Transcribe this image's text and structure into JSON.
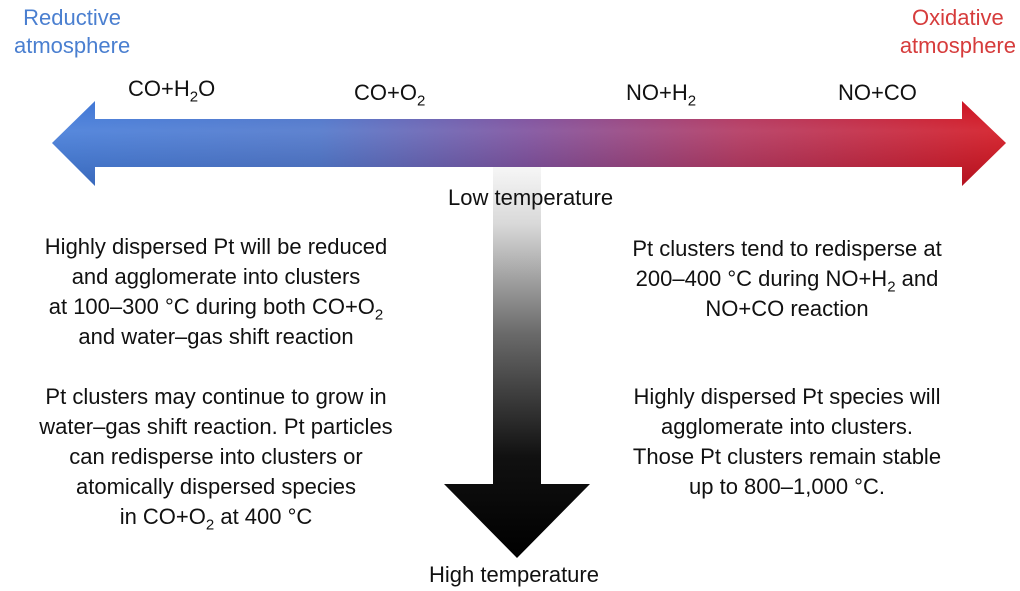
{
  "colors": {
    "reductive": "#4a7fd0",
    "oxidative": "#d63c3c",
    "arrow_left": "#3f78d8",
    "arrow_mid": "#7a4a9a",
    "arrow_right": "#d20f1a"
  },
  "reductive_label": [
    "Reductive",
    "atmosphere"
  ],
  "oxidative_label": [
    "Oxidative",
    "atmosphere"
  ],
  "reactions": [
    {
      "base": "CO+H",
      "sub": "2",
      "tail": "O"
    },
    {
      "base": "CO+O",
      "sub": "2",
      "tail": ""
    },
    {
      "base": "NO+H",
      "sub": "2",
      "tail": ""
    },
    {
      "base": "NO+CO",
      "sub": "",
      "tail": ""
    }
  ],
  "low_temperature": "Low temperature",
  "high_temperature": "High temperature",
  "left_top": {
    "line1": "Highly dispersed Pt will be reduced",
    "line2": "and agglomerate into clusters",
    "line3_base": "at 100–300 °C during both CO+O",
    "line3_sub": "2",
    "line4": "and water–gas shift reaction"
  },
  "left_bottom": {
    "line1": "Pt clusters may continue to grow in",
    "line2": "water–gas shift reaction. Pt particles",
    "line3": "can redisperse into clusters or",
    "line4": "atomically dispersed species",
    "line5_base": "in CO+O",
    "line5_sub": "2",
    "line5_tail": " at 400 °C"
  },
  "right_top": {
    "line1": "Pt clusters tend to redisperse at",
    "line2_base": "200–400 °C during NO+H",
    "line2_sub": "2",
    "line2_tail": " and",
    "line3": "NO+CO reaction"
  },
  "right_bottom": {
    "line1": "Highly dispersed Pt species will",
    "line2": "agglomerate into clusters.",
    "line3": "Those Pt clusters remain stable",
    "line4": "up to 800–1,000 °C."
  }
}
